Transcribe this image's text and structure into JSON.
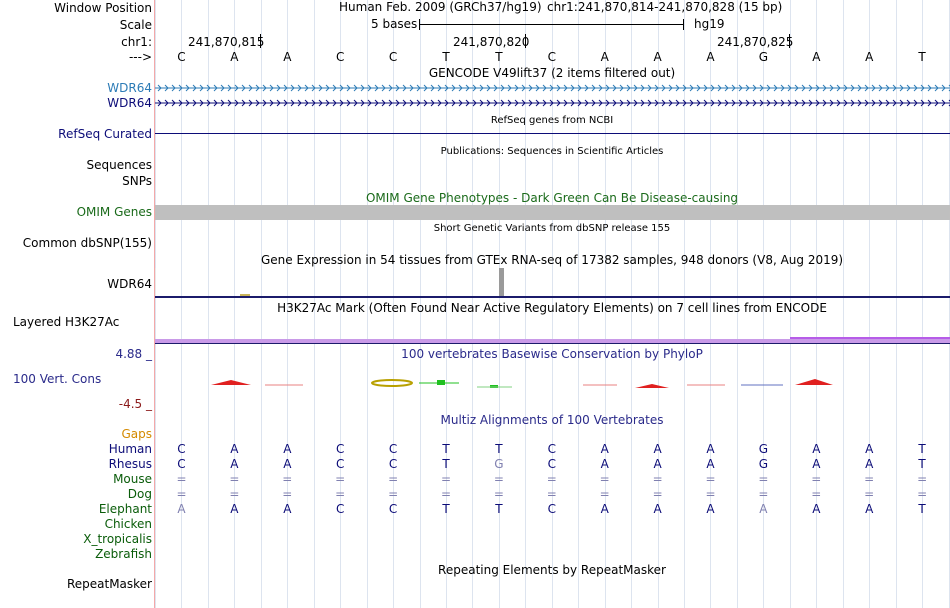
{
  "labels": {
    "window_position": "Window Position",
    "scale": "Scale",
    "chr": "chr1:",
    "arrow": "--->",
    "wdr64_blue": "WDR64",
    "wdr64_navy": "WDR64",
    "refseq_curated": "RefSeq Curated",
    "sequences": "Sequences",
    "snps": "SNPs",
    "omim_genes": "OMIM Genes",
    "common_dbsnp": "Common dbSNP(155)",
    "gtex_wdr64": "WDR64",
    "layered_h3k27ac": "Layered H3K27Ac",
    "cons_max": "4.88 _",
    "cons_label": "100 Vert. Cons",
    "cons_min": "-4.5 _",
    "gaps": "Gaps",
    "human": "Human",
    "rhesus": "Rhesus",
    "mouse": "Mouse",
    "dog": "Dog",
    "elephant": "Elephant",
    "chicken": "Chicken",
    "x_tropicalis": "X_tropicalis",
    "zebrafish": "Zebrafish",
    "repeatmasker": "RepeatMasker"
  },
  "header": {
    "assembly": "Human Feb. 2009 (GRCh37/hg19)",
    "position": "chr1:241,870,814-241,870,828 (15 bp)",
    "scale_text": "5 bases",
    "scale_db": "hg19",
    "coord_1": "241,870,815",
    "coord_2": "241,870,820",
    "coord_3": "241,870,825"
  },
  "bases": [
    "C",
    "A",
    "A",
    "C",
    "C",
    "T",
    "T",
    "C",
    "A",
    "A",
    "A",
    "G",
    "A",
    "A",
    "T"
  ],
  "tracks": {
    "gencode_title": "GENCODE V49lift37 (2 items filtered out)",
    "refseq_title": "RefSeq genes from NCBI",
    "publications_title": "Publications: Sequences in Scientific Articles",
    "omim_title": "OMIM Gene Phenotypes - Dark Green Can Be Disease-causing",
    "dbsnp_title": "Short Genetic Variants from dbSNP release 155",
    "gtex_title": "Gene Expression in 54 tissues from GTEx RNA-seq of 17382 samples, 948 donors (V8, Aug 2019)",
    "h3k27ac_title": "H3K27Ac Mark (Often Found Near Active Regulatory Elements) on 7 cell lines from ENCODE",
    "phylop_title": "100 vertebrates Basewise Conservation by PhyloP",
    "multiz_title": "Multiz Alignments of 100 Vertebrates",
    "repeatmasker_title": "Repeating Elements by RepeatMasker"
  },
  "alignments": {
    "human": [
      "C",
      "A",
      "A",
      "C",
      "C",
      "T",
      "T",
      "C",
      "A",
      "A",
      "A",
      "G",
      "A",
      "A",
      "T"
    ],
    "rhesus": [
      "C",
      "A",
      "A",
      "C",
      "C",
      "T",
      "G",
      "C",
      "A",
      "A",
      "A",
      "G",
      "A",
      "A",
      "T"
    ],
    "mouse": [
      "=",
      "=",
      "=",
      "=",
      "=",
      "=",
      "=",
      "=",
      "=",
      "=",
      "=",
      "=",
      "=",
      "=",
      "="
    ],
    "dog": [
      "=",
      "=",
      "=",
      "=",
      "=",
      "=",
      "=",
      "=",
      "=",
      "=",
      "=",
      "=",
      "=",
      "=",
      "="
    ],
    "elephant": [
      "A",
      "A",
      "A",
      "C",
      "C",
      "T",
      "T",
      "C",
      "A",
      "A",
      "A",
      "A",
      "A",
      "A",
      "T"
    ]
  },
  "colors": {
    "label_blue": "#2c7bb6",
    "label_navy": "#0c0c78",
    "omim_green": "#1a6a1a",
    "gaps_orange": "#d48a00",
    "species_green": "#0a5c0a",
    "phylop_navy": "#2a2a8a",
    "conserved_red": "#e02020",
    "h3k27ac_purple": "#b65ce8",
    "mismatch_gray": "#8080b0",
    "grid_line": "#dde4ef",
    "divider": "#f4a8a8"
  }
}
